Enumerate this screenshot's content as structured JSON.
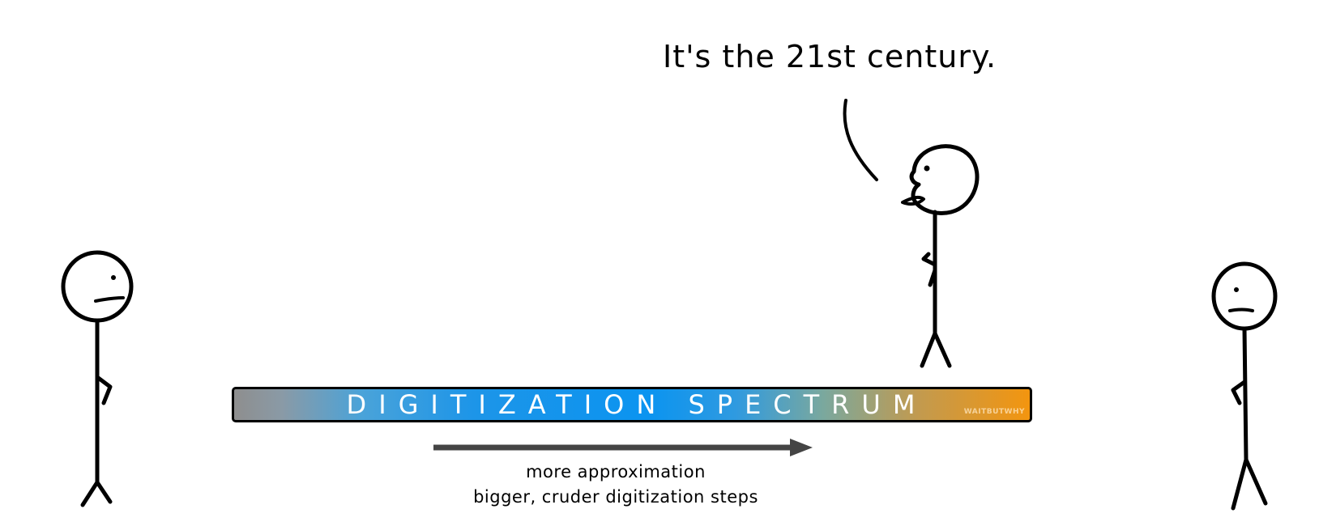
{
  "speech_bubble": {
    "text": "It's the 21st century."
  },
  "spectrum": {
    "title": "DIGITIZATION SPECTRUM",
    "watermark": "WAITBUTWHY",
    "colors": {
      "start": "#8e8e8e",
      "middle": "#0b94f0",
      "end": "#f3950f"
    }
  },
  "arrow": {
    "direction": "right",
    "color": "#444444"
  },
  "caption": {
    "line1": "more approximation",
    "line2": "bigger, cruder digitization steps"
  }
}
